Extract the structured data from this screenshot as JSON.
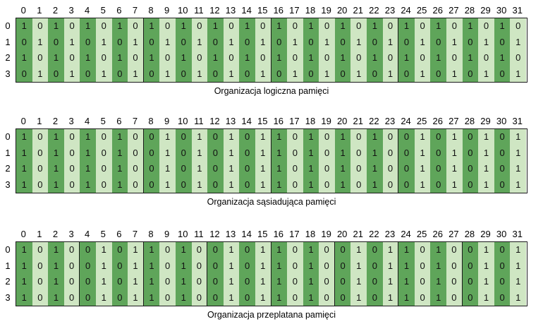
{
  "columns": [
    "0",
    "1",
    "2",
    "3",
    "4",
    "5",
    "6",
    "7",
    "8",
    "9",
    "10",
    "11",
    "12",
    "13",
    "14",
    "15",
    "16",
    "17",
    "18",
    "19",
    "20",
    "21",
    "22",
    "23",
    "24",
    "25",
    "26",
    "27",
    "28",
    "29",
    "30",
    "31"
  ],
  "rows": [
    "0",
    "1",
    "2",
    "3"
  ],
  "colors": {
    "dark": "#5fa55a",
    "light": "#cfe6c3",
    "border": "#1a1a1a"
  },
  "panels": [
    {
      "caption": "Organizacja logiczna pamięci",
      "cells": [
        [
          "1",
          "0",
          "1",
          "0",
          "1",
          "0",
          "1",
          "0",
          "1",
          "0",
          "1",
          "0",
          "1",
          "0",
          "1",
          "0",
          "1",
          "0",
          "1",
          "0",
          "1",
          "0",
          "1",
          "0",
          "1",
          "0",
          "1",
          "0",
          "1",
          "0",
          "1",
          "0"
        ],
        [
          "0",
          "1",
          "0",
          "1",
          "0",
          "1",
          "0",
          "1",
          "0",
          "1",
          "0",
          "1",
          "0",
          "1",
          "0",
          "1",
          "0",
          "1",
          "0",
          "1",
          "0",
          "1",
          "0",
          "1",
          "0",
          "1",
          "0",
          "1",
          "0",
          "1",
          "0",
          "1"
        ],
        [
          "1",
          "0",
          "1",
          "0",
          "1",
          "0",
          "1",
          "0",
          "1",
          "0",
          "1",
          "0",
          "1",
          "0",
          "1",
          "0",
          "1",
          "0",
          "1",
          "0",
          "1",
          "0",
          "1",
          "0",
          "1",
          "0",
          "1",
          "0",
          "1",
          "0",
          "1",
          "0"
        ],
        [
          "0",
          "1",
          "0",
          "1",
          "0",
          "1",
          "0",
          "1",
          "0",
          "1",
          "0",
          "1",
          "0",
          "1",
          "0",
          "1",
          "0",
          "1",
          "0",
          "1",
          "0",
          "1",
          "0",
          "1",
          "0",
          "1",
          "0",
          "1",
          "0",
          "1",
          "0",
          "1"
        ]
      ]
    },
    {
      "caption": "Organizacja sąsiadująca pamięci",
      "cells": [
        [
          "1",
          "0",
          "1",
          "0",
          "1",
          "0",
          "1",
          "0",
          "0",
          "1",
          "0",
          "1",
          "0",
          "1",
          "0",
          "1",
          "1",
          "0",
          "1",
          "0",
          "1",
          "0",
          "1",
          "0",
          "0",
          "1",
          "0",
          "1",
          "0",
          "1",
          "0",
          "1"
        ],
        [
          "1",
          "0",
          "1",
          "0",
          "1",
          "0",
          "1",
          "0",
          "0",
          "1",
          "0",
          "1",
          "0",
          "1",
          "0",
          "1",
          "1",
          "0",
          "1",
          "0",
          "1",
          "0",
          "1",
          "0",
          "0",
          "1",
          "0",
          "1",
          "0",
          "1",
          "0",
          "1"
        ],
        [
          "1",
          "0",
          "1",
          "0",
          "1",
          "0",
          "1",
          "0",
          "0",
          "1",
          "0",
          "1",
          "0",
          "1",
          "0",
          "1",
          "1",
          "0",
          "1",
          "0",
          "1",
          "0",
          "1",
          "0",
          "0",
          "1",
          "0",
          "1",
          "0",
          "1",
          "0",
          "1"
        ],
        [
          "1",
          "0",
          "1",
          "0",
          "1",
          "0",
          "1",
          "0",
          "0",
          "1",
          "0",
          "1",
          "0",
          "1",
          "0",
          "1",
          "1",
          "0",
          "1",
          "0",
          "1",
          "0",
          "1",
          "0",
          "0",
          "1",
          "0",
          "1",
          "0",
          "1",
          "0",
          "1"
        ]
      ]
    },
    {
      "caption": "Organizacja przeplatana pamięci",
      "cells": [
        [
          "1",
          "0",
          "1",
          "0",
          "0",
          "1",
          "0",
          "1",
          "1",
          "0",
          "1",
          "0",
          "0",
          "1",
          "0",
          "1",
          "1",
          "0",
          "1",
          "0",
          "0",
          "1",
          "0",
          "1",
          "1",
          "0",
          "1",
          "0",
          "0",
          "1",
          "0",
          "1"
        ],
        [
          "1",
          "0",
          "1",
          "0",
          "0",
          "1",
          "0",
          "1",
          "1",
          "0",
          "1",
          "0",
          "0",
          "1",
          "0",
          "1",
          "1",
          "0",
          "1",
          "0",
          "0",
          "1",
          "0",
          "1",
          "1",
          "0",
          "1",
          "0",
          "0",
          "1",
          "0",
          "1"
        ],
        [
          "1",
          "0",
          "1",
          "0",
          "0",
          "1",
          "0",
          "1",
          "1",
          "0",
          "1",
          "0",
          "0",
          "1",
          "0",
          "1",
          "1",
          "0",
          "1",
          "0",
          "0",
          "1",
          "0",
          "1",
          "1",
          "0",
          "1",
          "0",
          "0",
          "1",
          "0",
          "1"
        ],
        [
          "1",
          "0",
          "1",
          "0",
          "0",
          "1",
          "0",
          "1",
          "1",
          "0",
          "1",
          "0",
          "0",
          "1",
          "0",
          "1",
          "1",
          "0",
          "1",
          "0",
          "0",
          "1",
          "0",
          "1",
          "1",
          "0",
          "1",
          "0",
          "0",
          "1",
          "0",
          "1"
        ]
      ]
    }
  ]
}
